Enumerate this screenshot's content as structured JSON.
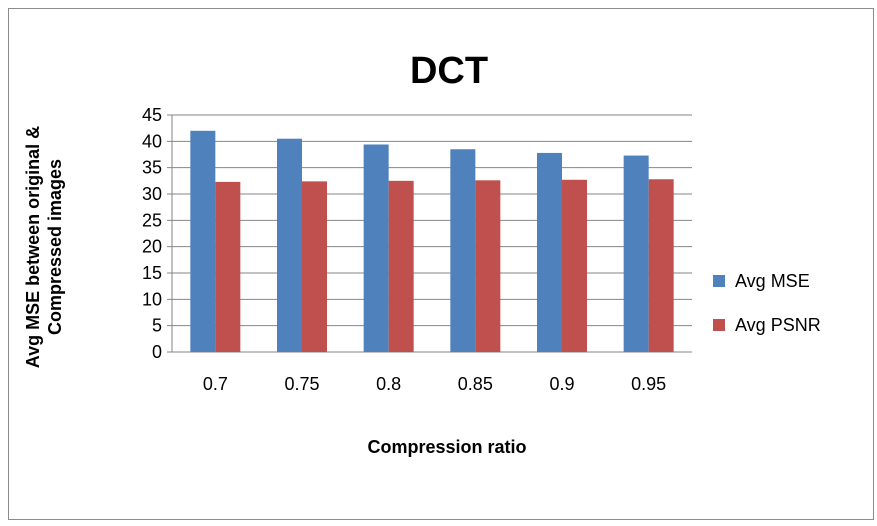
{
  "chart_data": {
    "type": "bar",
    "title": "DCT",
    "xlabel": "Compression ratio",
    "ylabel_lines": [
      "Avg MSE between original &",
      "Compressed images"
    ],
    "categories": [
      "0.7",
      "0.75",
      "0.8",
      "0.85",
      "0.9",
      "0.95"
    ],
    "series": [
      {
        "name": "Avg MSE",
        "color": "#4f81bd",
        "values": [
          42.0,
          40.5,
          39.4,
          38.5,
          37.8,
          37.3
        ]
      },
      {
        "name": "Avg PSNR",
        "color": "#c0504d",
        "values": [
          32.3,
          32.4,
          32.5,
          32.6,
          32.7,
          32.8
        ]
      }
    ],
    "ylim": [
      0,
      45
    ],
    "yticks": [
      "0",
      "5",
      "10",
      "15",
      "20",
      "25",
      "30",
      "35",
      "40",
      "45"
    ],
    "grid": true,
    "legend_position": "right"
  }
}
